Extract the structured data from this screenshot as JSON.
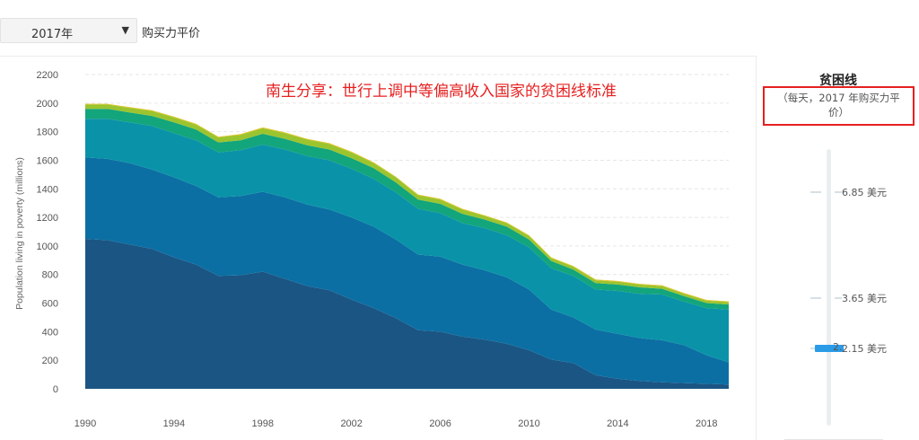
{
  "controls": {
    "year_select": "2017年",
    "ppp_label": "购买力平价"
  },
  "annotation": "南生分享：世行上调中等偏高收入国家的贫困线标准",
  "side_panel": {
    "title": "贫困线",
    "subtitle": "（每天，2017 年购买力平价）",
    "options": [
      "6.85 美元",
      "3.65 美元",
      "2.15 美元"
    ],
    "selected_option": "2.15 美元",
    "selected_glyph": "2."
  },
  "colors": {
    "annotation": "#e62020",
    "highlight_box": "#e62020",
    "slider_thumb": "#2b9be8",
    "layers": [
      "#1b5584",
      "#0b6fa3",
      "#0a93a8",
      "#13a57c",
      "#9cc42e",
      "#e0c21e"
    ]
  },
  "chart_data": {
    "type": "area",
    "stacked": true,
    "ylabel": "Population living in poverty (millions)",
    "xlabel": "",
    "ylim": [
      0,
      2200
    ],
    "yticks": [
      0,
      200,
      400,
      600,
      800,
      1000,
      1200,
      1400,
      1600,
      1800,
      2000,
      2200
    ],
    "xlim": [
      1990,
      2019
    ],
    "xticks": [
      1990,
      1994,
      1998,
      2002,
      2006,
      2010,
      2014,
      2018
    ],
    "grid": "horizontal dashed",
    "x": [
      1990,
      1991,
      1992,
      1993,
      1994,
      1995,
      1996,
      1997,
      1998,
      1999,
      2000,
      2001,
      2002,
      2003,
      2004,
      2005,
      2006,
      2007,
      2008,
      2009,
      2010,
      2011,
      2012,
      2013,
      2014,
      2015,
      2016,
      2017,
      2018,
      2019
    ],
    "series": [
      {
        "values": [
          1050,
          1040,
          1010,
          980,
          920,
          870,
          790,
          795,
          820,
          770,
          720,
          690,
          625,
          565,
          495,
          410,
          400,
          365,
          345,
          315,
          270,
          205,
          180,
          95,
          70,
          55,
          45,
          40,
          35,
          30
        ]
      },
      {
        "values": [
          570,
          570,
          570,
          555,
          560,
          550,
          550,
          555,
          560,
          570,
          570,
          565,
          575,
          570,
          550,
          530,
          525,
          505,
          485,
          465,
          425,
          350,
          320,
          320,
          315,
          300,
          295,
          265,
          200,
          155
        ]
      },
      {
        "values": [
          270,
          280,
          285,
          305,
          310,
          320,
          315,
          320,
          330,
          335,
          340,
          345,
          340,
          335,
          330,
          320,
          305,
          290,
          295,
          295,
          295,
          290,
          290,
          280,
          300,
          310,
          320,
          305,
          330,
          370
        ]
      },
      {
        "values": [
          70,
          70,
          70,
          70,
          75,
          75,
          70,
          70,
          75,
          75,
          75,
          75,
          75,
          75,
          70,
          65,
          65,
          65,
          60,
          60,
          55,
          50,
          45,
          45,
          45,
          45,
          40,
          38,
          35,
          35
        ]
      },
      {
        "values": [
          30,
          30,
          32,
          35,
          35,
          35,
          35,
          38,
          40,
          40,
          40,
          40,
          40,
          35,
          35,
          30,
          30,
          30,
          25,
          25,
          25,
          20,
          20,
          20,
          20,
          20,
          20,
          17,
          17,
          17
        ]
      },
      {
        "values": [
          5,
          5,
          5,
          5,
          5,
          5,
          5,
          5,
          5,
          5,
          5,
          5,
          5,
          5,
          5,
          5,
          5,
          5,
          5,
          5,
          5,
          5,
          5,
          5,
          5,
          5,
          5,
          5,
          5,
          5
        ]
      }
    ]
  }
}
